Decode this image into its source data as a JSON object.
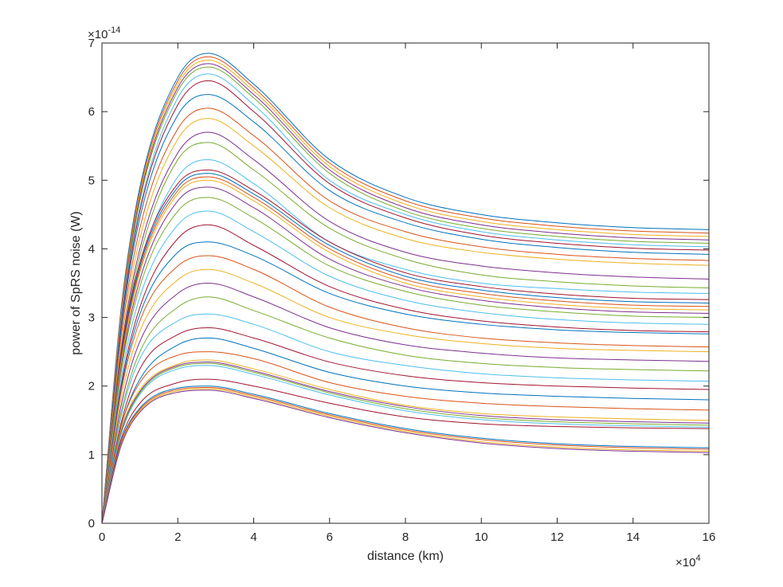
{
  "chart_data": {
    "type": "line",
    "title": "",
    "xlabel": "distance (km)",
    "ylabel": "power of SpRS noise (W)",
    "x_multiplier_label": "×10",
    "x_multiplier_exponent": "4",
    "y_multiplier_label": "×10",
    "y_multiplier_exponent": "-14",
    "xlim": [
      0,
      160000
    ],
    "ylim": [
      0,
      7e-14
    ],
    "xticks": [
      0,
      20000,
      40000,
      60000,
      80000,
      100000,
      120000,
      140000,
      160000
    ],
    "xtick_labels": [
      "0",
      "2",
      "4",
      "6",
      "8",
      "10",
      "12",
      "14",
      "16"
    ],
    "yticks": [
      0,
      1e-14,
      2e-14,
      3e-14,
      4e-14,
      5e-14,
      6e-14,
      7e-14
    ],
    "ytick_labels": [
      "0",
      "1",
      "2",
      "3",
      "4",
      "5",
      "6",
      "7"
    ],
    "grid": false,
    "legend": "none",
    "colors": [
      "#0072BD",
      "#D95319",
      "#EDB120",
      "#7E2F8E",
      "#77AC30",
      "#4DBEEE",
      "#A2142F"
    ],
    "x": [
      0,
      5000,
      10000,
      20000,
      28000,
      40000,
      60000,
      80000,
      100000,
      120000,
      140000,
      160000
    ],
    "series": [
      {
        "values": [
          0,
          3.1e-14,
          4.9e-14,
          6.5e-14,
          6.85e-14,
          6.4e-14,
          5.3e-14,
          4.75e-14,
          4.5e-14,
          4.38e-14,
          4.31e-14,
          4.28e-14
        ]
      },
      {
        "values": [
          0,
          3.05e-14,
          4.85e-14,
          6.45e-14,
          6.8e-14,
          6.35e-14,
          5.25e-14,
          4.7e-14,
          4.45e-14,
          4.33e-14,
          4.26e-14,
          4.23e-14
        ]
      },
      {
        "values": [
          0,
          3e-14,
          4.8e-14,
          6.4e-14,
          6.75e-14,
          6.3e-14,
          5.2e-14,
          4.65e-14,
          4.4e-14,
          4.28e-14,
          4.21e-14,
          4.18e-14
        ]
      },
      {
        "values": [
          0,
          2.95e-14,
          4.75e-14,
          6.35e-14,
          6.7e-14,
          6.25e-14,
          5.15e-14,
          4.6e-14,
          4.35e-14,
          4.23e-14,
          4.16e-14,
          4.13e-14
        ]
      },
      {
        "values": [
          0,
          2.9e-14,
          4.7e-14,
          6.3e-14,
          6.65e-14,
          6.2e-14,
          5.1e-14,
          4.55e-14,
          4.3e-14,
          4.18e-14,
          4.11e-14,
          4.08e-14
        ]
      },
      {
        "values": [
          0,
          2.9e-14,
          4.6e-14,
          6.2e-14,
          6.55e-14,
          6.1e-14,
          5e-14,
          4.5e-14,
          4.25e-14,
          4.13e-14,
          4.06e-14,
          4.03e-14
        ]
      },
      {
        "values": [
          0,
          2.85e-14,
          4.55e-14,
          6.1e-14,
          6.45e-14,
          6e-14,
          4.95e-14,
          4.45e-14,
          4.2e-14,
          4.08e-14,
          4.01e-14,
          3.98e-14
        ]
      },
      {
        "values": [
          0,
          2.8e-14,
          4.45e-14,
          5.95e-14,
          6.25e-14,
          5.85e-14,
          4.85e-14,
          4.38e-14,
          4.14e-14,
          4.02e-14,
          3.95e-14,
          3.92e-14
        ]
      },
      {
        "values": [
          0,
          2.7e-14,
          4.3e-14,
          5.75e-14,
          6.05e-14,
          5.65e-14,
          4.7e-14,
          4.25e-14,
          4.03e-14,
          3.92e-14,
          3.86e-14,
          3.83e-14
        ]
      },
      {
        "values": [
          0,
          2.6e-14,
          4.15e-14,
          5.6e-14,
          5.9e-14,
          5.5e-14,
          4.6e-14,
          4.15e-14,
          3.95e-14,
          3.85e-14,
          3.79e-14,
          3.76e-14
        ]
      },
      {
        "values": [
          0,
          2.5e-14,
          4e-14,
          5.4e-14,
          5.7e-14,
          5.3e-14,
          4.4e-14,
          3.95e-14,
          3.75e-14,
          3.65e-14,
          3.59e-14,
          3.56e-14
        ]
      },
      {
        "values": [
          0,
          2.45e-14,
          3.9e-14,
          5.3e-14,
          5.55e-14,
          5.15e-14,
          4.3e-14,
          3.85e-14,
          3.62e-14,
          3.52e-14,
          3.46e-14,
          3.43e-14
        ]
      },
      {
        "values": [
          0,
          2.35e-14,
          3.75e-14,
          5.05e-14,
          5.3e-14,
          4.95e-14,
          4.1e-14,
          3.7e-14,
          3.5e-14,
          3.42e-14,
          3.37e-14,
          3.35e-14
        ]
      },
      {
        "values": [
          0,
          2.45e-14,
          3.8e-14,
          4.95e-14,
          5.15e-14,
          4.85e-14,
          4.1e-14,
          3.65e-14,
          3.45e-14,
          3.34e-14,
          3.28e-14,
          3.26e-14
        ]
      },
      {
        "values": [
          0,
          2.4e-14,
          3.75e-14,
          4.9e-14,
          5.1e-14,
          4.8e-14,
          4.05e-14,
          3.6e-14,
          3.4e-14,
          3.29e-14,
          3.23e-14,
          3.21e-14
        ]
      },
      {
        "values": [
          0,
          2.35e-14,
          3.7e-14,
          4.85e-14,
          5.05e-14,
          4.75e-14,
          4e-14,
          3.55e-14,
          3.35e-14,
          3.24e-14,
          3.18e-14,
          3.16e-14
        ]
      },
      {
        "values": [
          0,
          2.3e-14,
          3.65e-14,
          4.8e-14,
          5e-14,
          4.7e-14,
          3.95e-14,
          3.5e-14,
          3.3e-14,
          3.19e-14,
          3.13e-14,
          3.11e-14
        ]
      },
      {
        "values": [
          0,
          2.25e-14,
          3.55e-14,
          4.7e-14,
          4.9e-14,
          4.6e-14,
          3.85e-14,
          3.45e-14,
          3.25e-14,
          3.14e-14,
          3.08e-14,
          3.06e-14
        ]
      },
      {
        "values": [
          0,
          2.2e-14,
          3.45e-14,
          4.55e-14,
          4.75e-14,
          4.45e-14,
          3.75e-14,
          3.38e-14,
          3.18e-14,
          3.08e-14,
          3.02e-14,
          3e-14
        ]
      },
      {
        "values": [
          0,
          2.1e-14,
          3.3e-14,
          4.35e-14,
          4.55e-14,
          4.25e-14,
          3.6e-14,
          3.25e-14,
          3.07e-14,
          2.97e-14,
          2.92e-14,
          2.9e-14
        ]
      },
      {
        "values": [
          0,
          2e-14,
          3.15e-14,
          4.15e-14,
          4.35e-14,
          4.05e-14,
          3.45e-14,
          3.12e-14,
          2.95e-14,
          2.86e-14,
          2.81e-14,
          2.79e-14
        ]
      },
      {
        "values": [
          0,
          1.95e-14,
          3.05e-14,
          3.95e-14,
          4.1e-14,
          3.9e-14,
          3.35e-14,
          3.05e-14,
          2.9e-14,
          2.82e-14,
          2.78e-14,
          2.76e-14
        ]
      },
      {
        "values": [
          0,
          1.9e-14,
          2.95e-14,
          3.75e-14,
          3.9e-14,
          3.7e-14,
          3.15e-14,
          2.85e-14,
          2.7e-14,
          2.63e-14,
          2.59e-14,
          2.57e-14
        ]
      },
      {
        "values": [
          0,
          1.8e-14,
          2.8e-14,
          3.55e-14,
          3.7e-14,
          3.5e-14,
          3e-14,
          2.75e-14,
          2.62e-14,
          2.55e-14,
          2.52e-14,
          2.5e-14
        ]
      },
      {
        "values": [
          0,
          1.7e-14,
          2.65e-14,
          3.35e-14,
          3.5e-14,
          3.3e-14,
          2.85e-14,
          2.6e-14,
          2.48e-14,
          2.41e-14,
          2.38e-14,
          2.36e-14
        ]
      },
      {
        "values": [
          0,
          1.6e-14,
          2.5e-14,
          3.15e-14,
          3.3e-14,
          3.1e-14,
          2.7e-14,
          2.45e-14,
          2.33e-14,
          2.27e-14,
          2.24e-14,
          2.22e-14
        ]
      },
      {
        "values": [
          0,
          1.55e-14,
          2.4e-14,
          2.95e-14,
          3.05e-14,
          2.9e-14,
          2.5e-14,
          2.3e-14,
          2.18e-14,
          2.12e-14,
          2.09e-14,
          2.07e-14
        ]
      },
      {
        "values": [
          0,
          1.45e-14,
          2.25e-14,
          2.75e-14,
          2.85e-14,
          2.7e-14,
          2.35e-14,
          2.15e-14,
          2.05e-14,
          2e-14,
          1.97e-14,
          1.95e-14
        ]
      },
      {
        "values": [
          0,
          1.4e-14,
          2.1e-14,
          2.6e-14,
          2.7e-14,
          2.55e-14,
          2.2e-14,
          2e-14,
          1.9e-14,
          1.85e-14,
          1.82e-14,
          1.8e-14
        ]
      },
      {
        "values": [
          0,
          1.4e-14,
          2.05e-14,
          2.45e-14,
          2.5e-14,
          2.4e-14,
          2.05e-14,
          1.85e-14,
          1.75e-14,
          1.7e-14,
          1.67e-14,
          1.65e-14
        ]
      },
      {
        "values": [
          0,
          1.35e-14,
          1.95e-14,
          2.32e-14,
          2.38e-14,
          2.25e-14,
          1.95e-14,
          1.72e-14,
          1.6e-14,
          1.55e-14,
          1.52e-14,
          1.5e-14
        ]
      },
      {
        "values": [
          0,
          1.32e-14,
          1.92e-14,
          2.3e-14,
          2.35e-14,
          2.22e-14,
          1.92e-14,
          1.7e-14,
          1.57e-14,
          1.51e-14,
          1.48e-14,
          1.46e-14
        ]
      },
      {
        "values": [
          0,
          1.3e-14,
          1.9e-14,
          2.28e-14,
          2.33e-14,
          2.2e-14,
          1.9e-14,
          1.67e-14,
          1.54e-14,
          1.48e-14,
          1.45e-14,
          1.43e-14
        ]
      },
      {
        "values": [
          0,
          1.28e-14,
          1.88e-14,
          2.25e-14,
          2.3e-14,
          2.17e-14,
          1.87e-14,
          1.64e-14,
          1.51e-14,
          1.45e-14,
          1.42e-14,
          1.4e-14
        ]
      },
      {
        "values": [
          0,
          1.22e-14,
          1.75e-14,
          2.05e-14,
          2.1e-14,
          2e-14,
          1.75e-14,
          1.55e-14,
          1.45e-14,
          1.41e-14,
          1.39e-14,
          1.38e-14
        ]
      },
      {
        "values": [
          0,
          1.18e-14,
          1.68e-14,
          1.97e-14,
          2e-14,
          1.88e-14,
          1.6e-14,
          1.38e-14,
          1.24e-14,
          1.16e-14,
          1.12e-14,
          1.1e-14
        ]
      },
      {
        "values": [
          0,
          1.16e-14,
          1.66e-14,
          1.95e-14,
          1.98e-14,
          1.86e-14,
          1.58e-14,
          1.36e-14,
          1.22e-14,
          1.14e-14,
          1.1e-14,
          1.08e-14
        ]
      },
      {
        "values": [
          0,
          1.14e-14,
          1.64e-14,
          1.93e-14,
          1.96e-14,
          1.84e-14,
          1.56e-14,
          1.34e-14,
          1.19e-14,
          1.11e-14,
          1.07e-14,
          1.05e-14
        ]
      },
      {
        "values": [
          0,
          1.12e-14,
          1.62e-14,
          1.91e-14,
          1.94e-14,
          1.82e-14,
          1.54e-14,
          1.32e-14,
          1.17e-14,
          1.09e-14,
          1.05e-14,
          1.03e-14
        ]
      }
    ]
  }
}
